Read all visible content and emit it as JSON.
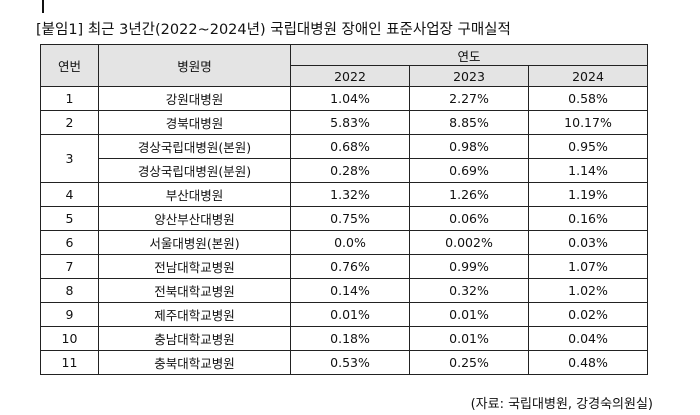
{
  "title": "[붙임1] 최근 3년간(2022~2024년) 국립대병원 장애인 표준사업장 구매실적",
  "headers": {
    "no": "연번",
    "hospital": "병원명",
    "year_group": "연도",
    "years": [
      "2022",
      "2023",
      "2024"
    ]
  },
  "rows": [
    {
      "no": "1",
      "name": "강원대병원",
      "v": [
        "1.04%",
        "2.27%",
        "0.58%"
      ]
    },
    {
      "no": "2",
      "name": "경북대병원",
      "v": [
        "5.83%",
        "8.85%",
        "10.17%"
      ]
    },
    {
      "no": "3",
      "name": "경상국립대병원(본원)",
      "v": [
        "0.68%",
        "0.98%",
        "0.95%"
      ]
    },
    {
      "no": "",
      "name": "경상국립대병원(분원)",
      "v": [
        "0.28%",
        "0.69%",
        "1.14%"
      ]
    },
    {
      "no": "4",
      "name": "부산대병원",
      "v": [
        "1.32%",
        "1.26%",
        "1.19%"
      ]
    },
    {
      "no": "5",
      "name": "양산부산대병원",
      "v": [
        "0.75%",
        "0.06%",
        "0.16%"
      ]
    },
    {
      "no": "6",
      "name": "서울대병원(본원)",
      "v": [
        "0.0%",
        "0.002%",
        "0.03%"
      ]
    },
    {
      "no": "7",
      "name": "전남대학교병원",
      "v": [
        "0.76%",
        "0.99%",
        "1.07%"
      ]
    },
    {
      "no": "8",
      "name": "전북대학교병원",
      "v": [
        "0.14%",
        "0.32%",
        "1.02%"
      ]
    },
    {
      "no": "9",
      "name": "제주대학교병원",
      "v": [
        "0.01%",
        "0.01%",
        "0.02%"
      ]
    },
    {
      "no": "10",
      "name": "충남대학교병원",
      "v": [
        "0.18%",
        "0.01%",
        "0.04%"
      ]
    },
    {
      "no": "11",
      "name": "충북대학교병원",
      "v": [
        "0.53%",
        "0.25%",
        "0.48%"
      ]
    }
  ],
  "source": "(자료: 국립대병원, 강경숙의원실)"
}
